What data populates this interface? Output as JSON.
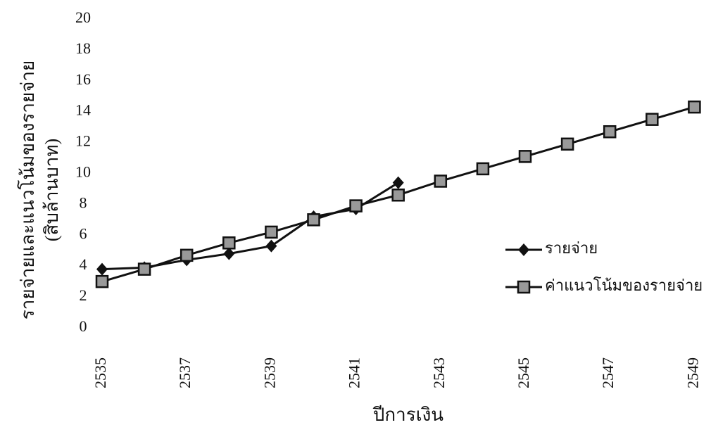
{
  "chart_data": {
    "type": "line",
    "x_label": "ปีการเงิน",
    "y_label": [
      "รายจ่ายและแนวโน้มของรายจ่าย",
      "(สิบล้านบาท)"
    ],
    "categories": [
      "2535",
      null,
      "2537",
      null,
      "2539",
      null,
      "2541",
      null,
      "2543",
      null,
      "2545",
      null,
      "2547",
      null,
      "2549"
    ],
    "series": [
      {
        "name": "รายจ่าย",
        "color": "#111111",
        "marker": "diamond",
        "values": [
          3.8,
          3.9,
          4.4,
          4.8,
          5.3,
          7.2,
          7.7,
          9.4,
          null,
          null,
          null,
          null,
          null,
          null,
          null
        ]
      },
      {
        "name": "ค่าแนวโน้มของรายจ่าย",
        "color": "#111111",
        "marker": "square",
        "values": [
          3.0,
          3.8,
          4.7,
          5.5,
          6.2,
          7.0,
          7.9,
          8.6,
          9.5,
          10.3,
          11.1,
          11.9,
          12.7,
          13.5,
          14.3
        ]
      }
    ],
    "ylim": [
      0,
      20
    ],
    "yticks": [
      0,
      2,
      4,
      6,
      8,
      10,
      12,
      14,
      16,
      18,
      20
    ],
    "grid": false
  }
}
